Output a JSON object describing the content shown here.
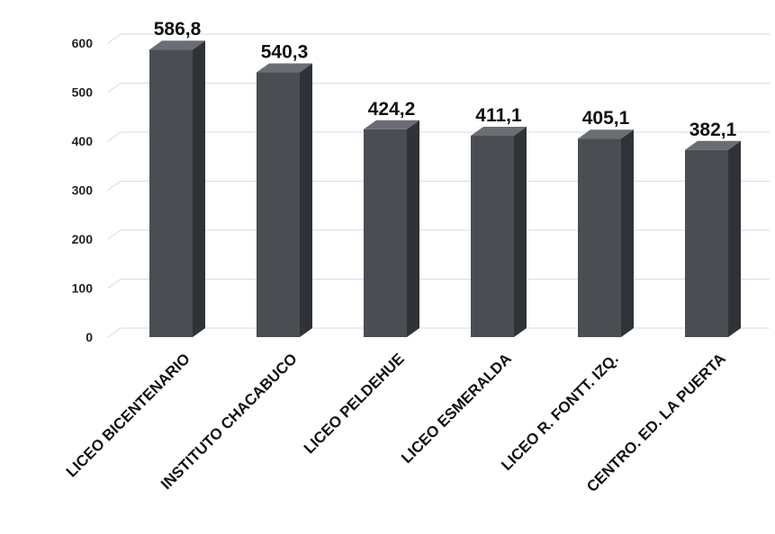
{
  "chart_data": {
    "type": "bar",
    "categories": [
      "LICEO BICENTENARIO",
      "INSTITUTO CHACABUCO",
      "LICEO PELDEHUE",
      "LICEO ESMERALDA",
      "LICEO R. FONTT. IZQ.",
      "CENTRO. ED. LA PUERTA"
    ],
    "values": [
      586.8,
      540.3,
      424.2,
      411.1,
      405.1,
      382.1
    ],
    "data_labels": [
      "586,8",
      "540,3",
      "424,2",
      "411,1",
      "405,1",
      "382,1"
    ],
    "yticks": [
      "0",
      "100",
      "200",
      "300",
      "400",
      "500",
      "600"
    ],
    "ylim": [
      0,
      600
    ],
    "grid": true,
    "bar_style": "3d-column",
    "colors": {
      "front": "#4a4d52",
      "side": "#2f3236",
      "top": "#6a6d72",
      "grid": "#d6dbe3"
    }
  }
}
